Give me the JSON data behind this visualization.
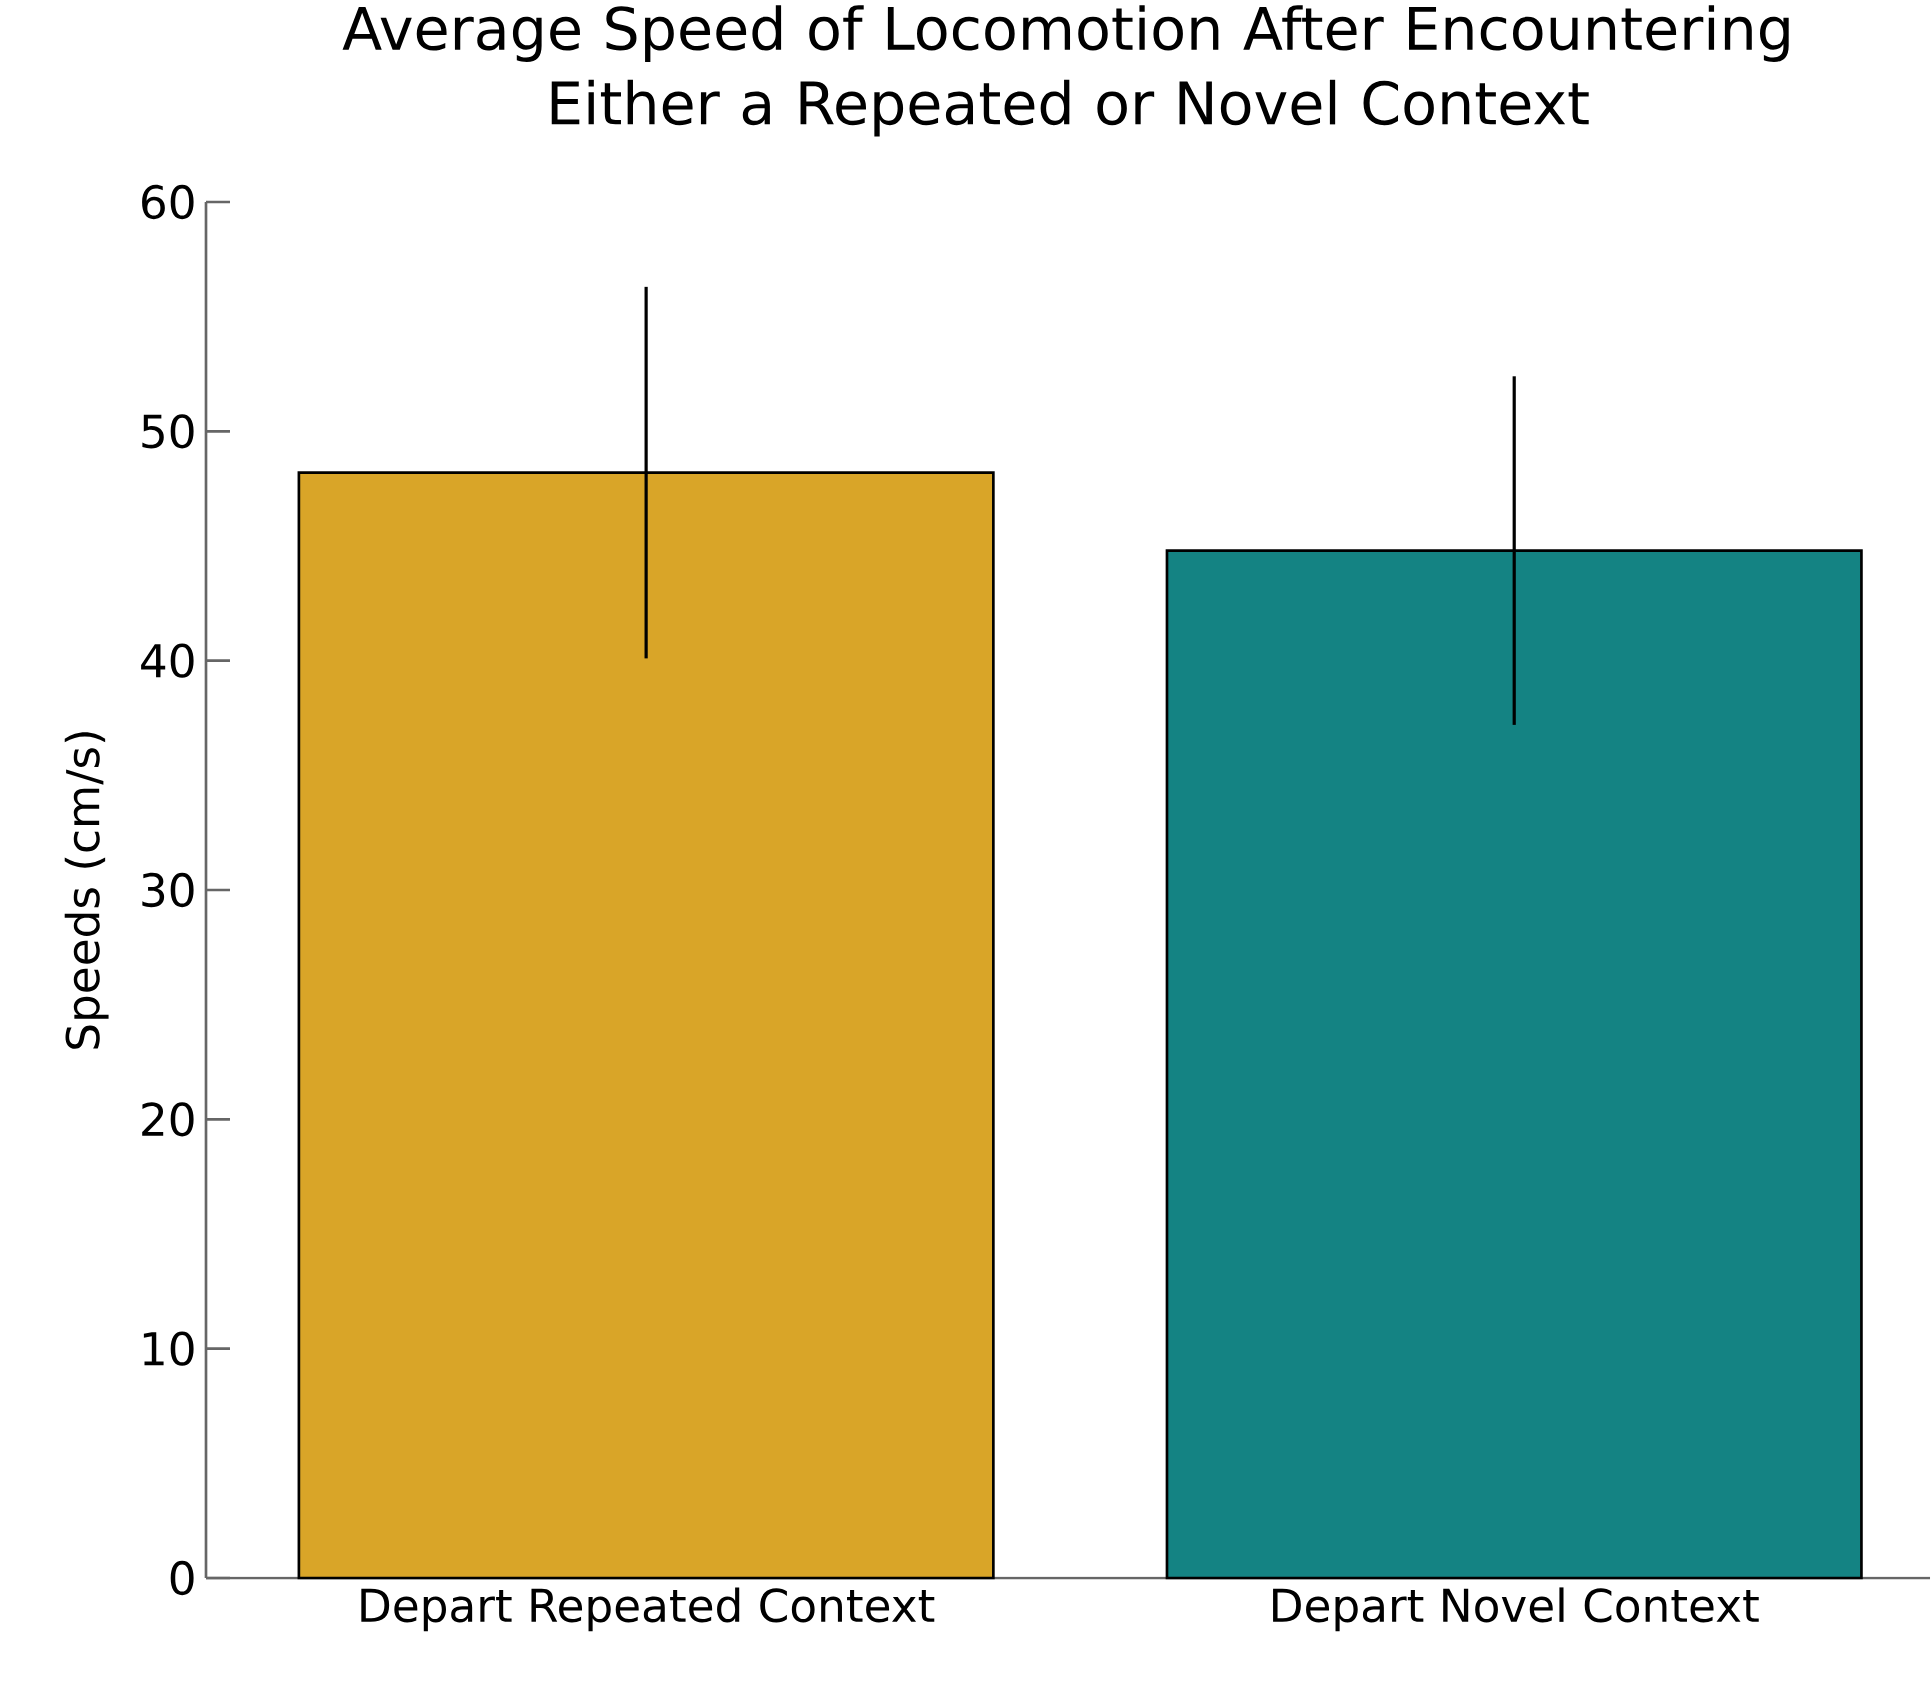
{
  "chart_data": {
    "type": "bar",
    "title": "Average Speed of Locomotion After Encountering Either a Repeated or Novel Context",
    "ylabel": "Speeds (cm/s)",
    "categories": [
      "Depart Repeated Context",
      "Depart Novel Context"
    ],
    "values": [
      48.2,
      44.8
    ],
    "errors": [
      8.1,
      7.6
    ],
    "colors": [
      "#d9a528",
      "#148383"
    ],
    "ylim": [
      0,
      60
    ],
    "yticks": [
      0,
      10,
      20,
      30,
      40,
      50,
      60
    ],
    "grid": false
  }
}
